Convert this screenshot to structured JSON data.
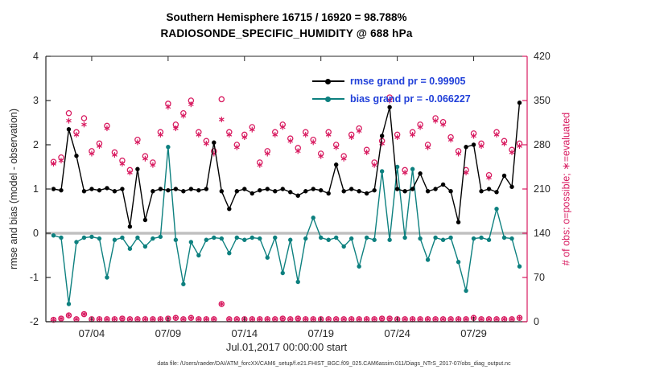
{
  "title": {
    "line1": "Southern Hemisphere 16715 / 16920 = 98.788%",
    "line2": "RADIOSONDE_SPECIFIC_HUMIDITY @ 688 hPa"
  },
  "legend": {
    "rmse": "rmse grand pr = 0.99905",
    "bias": "bias grand pr = -0.066227"
  },
  "axes": {
    "left_label": "rmse and bias (model - observation)",
    "right_label": "# of obs: o=possible; ∗=evaluated",
    "x_label": "Jul.01,2017 00:00:00 start",
    "left_ticks": [
      -2,
      -1,
      0,
      1,
      2,
      3,
      4
    ],
    "right_ticks": [
      0,
      70,
      140,
      210,
      280,
      350,
      420
    ],
    "x_ticks": [
      {
        "day": 3,
        "label": "07/04"
      },
      {
        "day": 8,
        "label": "07/09"
      },
      {
        "day": 13,
        "label": "07/14"
      },
      {
        "day": 18,
        "label": "07/19"
      },
      {
        "day": 23,
        "label": "07/24"
      },
      {
        "day": 28,
        "label": "07/29"
      }
    ],
    "left_range": [
      -2,
      4
    ],
    "right_range": [
      0,
      420
    ],
    "x_range": [
      0,
      31.5
    ]
  },
  "footer": {
    "text": "data file: /Users/raeder/DAI/ATM_forcXX/CAM6_setup/f.e21.FHIST_BGC.f09_025.CAM6assim.011/Diags_NTrS_2017-07/obs_diag_output.nc"
  },
  "colors": {
    "rmse": "#000000",
    "bias": "#0d807f",
    "counts": "#d81b60",
    "legend_text": "#2140d9",
    "zero_line": "#c0c0c0",
    "axis": "#262626"
  },
  "chart_data": {
    "type": "line",
    "title": "Southern Hemisphere 16715 / 16920 = 98.788% — RADIOSONDE_SPECIFIC_HUMIDITY @ 688 hPa",
    "xlabel": "Jul.01,2017 00:00:00 start",
    "ylabel_left": "rmse and bias (model - observation)",
    "ylabel_right": "# of obs: o=possible; ∗=evaluated",
    "x_days": [
      0.5,
      1,
      1.5,
      2,
      2.5,
      3,
      3.5,
      4,
      4.5,
      5,
      5.5,
      6,
      6.5,
      7,
      7.5,
      8,
      8.5,
      9,
      9.5,
      10,
      10.5,
      11,
      11.5,
      12,
      12.5,
      13,
      13.5,
      14,
      14.5,
      15,
      15.5,
      16,
      16.5,
      17,
      17.5,
      18,
      18.5,
      19,
      19.5,
      20,
      20.5,
      21,
      21.5,
      22,
      22.5,
      23,
      23.5,
      24,
      24.5,
      25,
      25.5,
      26,
      26.5,
      27,
      27.5,
      28,
      28.5,
      29,
      29.5,
      30,
      30.5,
      31
    ],
    "series": [
      {
        "name": "possible-obs",
        "axis": "right",
        "marker": "o",
        "line": false,
        "color": "#d81b60",
        "values": [
          253,
          260,
          330,
          300,
          322,
          270,
          282,
          310,
          268,
          255,
          240,
          288,
          262,
          252,
          300,
          345,
          312,
          330,
          350,
          300,
          286,
          270,
          352,
          300,
          280,
          296,
          308,
          252,
          270,
          300,
          312,
          290,
          275,
          300,
          288,
          266,
          300,
          280,
          262,
          296,
          306,
          272,
          252,
          286,
          355,
          296,
          240,
          300,
          312,
          280,
          322,
          316,
          292,
          270,
          240,
          298,
          282,
          232,
          300,
          286,
          272,
          282
        ]
      },
      {
        "name": "evaluated-obs",
        "axis": "right",
        "marker": "asterisk",
        "line": false,
        "color": "#d81b60",
        "values": [
          250,
          255,
          318,
          296,
          312,
          266,
          278,
          306,
          264,
          250,
          236,
          284,
          258,
          248,
          296,
          340,
          306,
          326,
          344,
          296,
          282,
          266,
          320,
          296,
          276,
          292,
          304,
          248,
          266,
          296,
          308,
          286,
          270,
          296,
          284,
          262,
          296,
          276,
          258,
          292,
          302,
          268,
          248,
          282,
          350,
          292,
          236,
          296,
          308,
          276,
          318,
          312,
          288,
          266,
          236,
          294,
          278,
          228,
          296,
          282,
          268,
          278
        ]
      },
      {
        "name": "bottom-row-obs",
        "axis": "right",
        "marker": "o+asterisk",
        "line": false,
        "color": "#d81b60",
        "values": [
          3,
          5,
          10,
          4,
          12,
          4,
          4,
          4,
          4,
          5,
          4,
          4,
          4,
          4,
          4,
          5,
          6,
          4,
          6,
          4,
          4,
          4,
          28,
          4,
          4,
          4,
          4,
          4,
          4,
          4,
          5,
          4,
          5,
          4,
          4,
          4,
          4,
          4,
          4,
          4,
          4,
          4,
          4,
          5,
          5,
          4,
          4,
          4,
          4,
          4,
          4,
          4,
          4,
          4,
          4,
          6,
          4,
          4,
          4,
          4,
          4,
          6
        ]
      },
      {
        "name": "bias",
        "axis": "left",
        "marker": "dot",
        "line": true,
        "color": "#0d807f",
        "values": [
          -0.05,
          -0.1,
          -1.6,
          -0.2,
          -0.1,
          -0.08,
          -0.12,
          -1.0,
          -0.15,
          -0.1,
          -0.35,
          -0.1,
          -0.3,
          -0.12,
          -0.08,
          1.95,
          -0.15,
          -1.15,
          -0.2,
          -0.5,
          -0.15,
          -0.1,
          -0.12,
          -0.45,
          -0.1,
          -0.15,
          -0.1,
          -0.12,
          -0.55,
          -0.1,
          -0.9,
          -0.15,
          -1.1,
          -0.12,
          0.35,
          -0.1,
          -0.15,
          -0.1,
          -0.3,
          -0.12,
          -0.75,
          -0.1,
          -0.15,
          1.4,
          -0.15,
          1.5,
          -0.1,
          1.45,
          -0.12,
          -0.6,
          -0.1,
          -0.15,
          -0.1,
          -0.65,
          -1.3,
          -0.12,
          -0.1,
          -0.15,
          0.55,
          -0.1,
          -0.12,
          -0.75
        ]
      },
      {
        "name": "rmse",
        "axis": "left",
        "marker": "dot",
        "line": true,
        "color": "#000000",
        "values": [
          1.0,
          0.97,
          2.35,
          1.75,
          0.95,
          1.0,
          0.97,
          1.02,
          0.95,
          1.0,
          0.15,
          1.45,
          0.3,
          0.95,
          1.0,
          0.97,
          1.0,
          0.95,
          1.0,
          0.97,
          1.0,
          2.05,
          0.95,
          0.55,
          0.95,
          1.0,
          0.9,
          0.97,
          1.0,
          0.95,
          1.0,
          0.93,
          0.85,
          0.95,
          1.0,
          0.97,
          0.9,
          1.55,
          0.95,
          1.0,
          0.95,
          0.9,
          0.97,
          2.2,
          2.85,
          1.0,
          0.95,
          1.0,
          1.35,
          0.95,
          1.0,
          1.1,
          0.95,
          0.25,
          1.95,
          2.0,
          0.95,
          1.0,
          0.93,
          1.3,
          1.05,
          2.95
        ]
      }
    ]
  }
}
